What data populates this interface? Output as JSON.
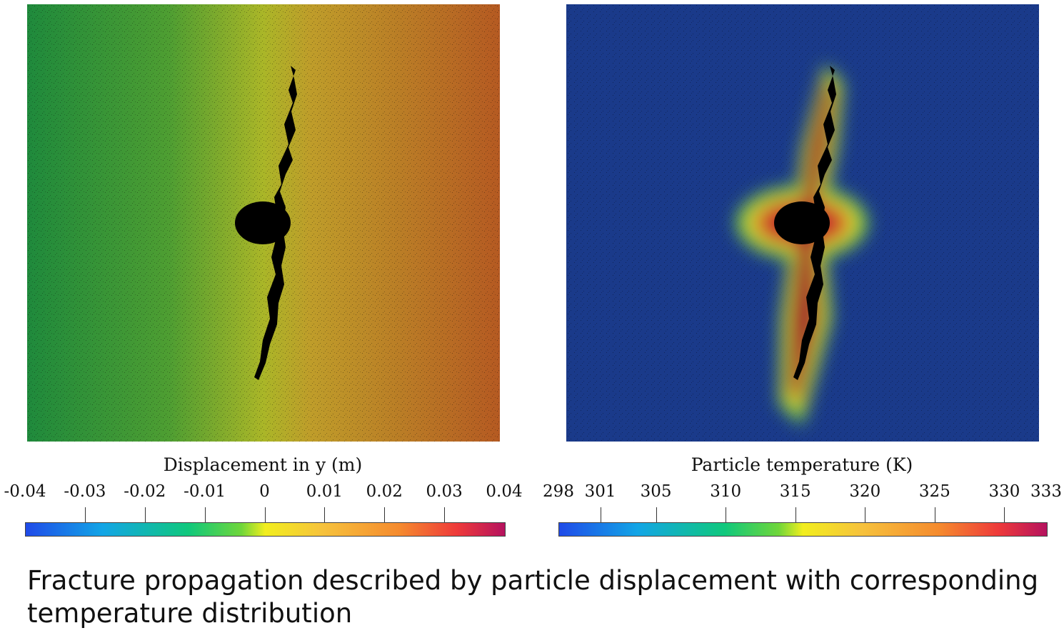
{
  "figure": {
    "left_panel": {
      "colorbar_title": "Displacement in y (m)",
      "ticks": [
        "-0.04",
        "-0.03",
        "-0.02",
        "-0.01",
        "0",
        "0.01",
        "0.02",
        "0.03",
        "0.04"
      ],
      "colormap": [
        "#1f4ae8",
        "#12a5e6",
        "#10c87c",
        "#f2ee1e",
        "#f58a2e",
        "#ee3a3a",
        "#b5125e"
      ]
    },
    "right_panel": {
      "colorbar_title": "Particle temperature (K)",
      "ticks": [
        "298",
        "301",
        "305",
        "310",
        "315",
        "320",
        "325",
        "330",
        "333"
      ],
      "colormap": [
        "#1f4ae8",
        "#12a5e6",
        "#10c87c",
        "#f2ee1e",
        "#f58a2e",
        "#ee3a3a",
        "#b5125e"
      ]
    },
    "caption": "Fracture propagation described by particle displacement with corresponding temperature distribution"
  }
}
